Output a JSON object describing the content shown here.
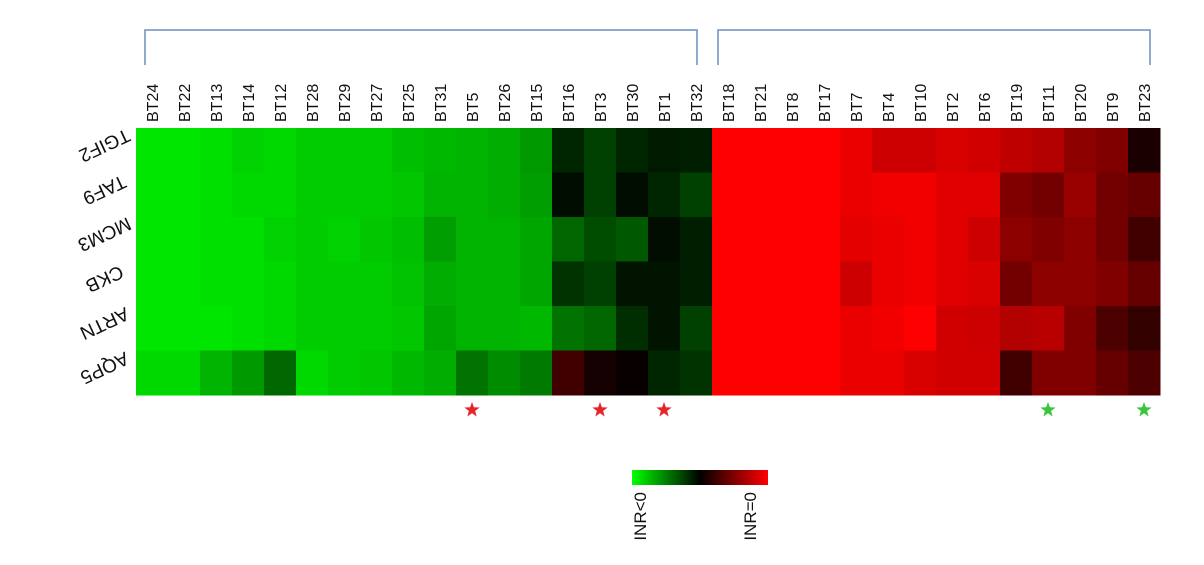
{
  "chart_data": {
    "type": "heatmap",
    "categories": [
      "BT24",
      "BT22",
      "BT13",
      "BT14",
      "BT12",
      "BT28",
      "BT29",
      "BT27",
      "BT25",
      "BT31",
      "BT5",
      "BT26",
      "BT15",
      "BT16",
      "BT3",
      "BT30",
      "BT1",
      "BT32",
      "BT18",
      "BT21",
      "BT8",
      "BT17",
      "BT7",
      "BT4",
      "BT10",
      "BT2",
      "BT6",
      "BT19",
      "BT11",
      "BT20",
      "BT9",
      "BT23"
    ],
    "rows": [
      "TGIF2",
      "TAF9",
      "MCM3",
      "CKB",
      "ARTN",
      "AQP5"
    ],
    "values": [
      [
        -0.9,
        -0.9,
        -0.88,
        -0.82,
        -0.85,
        -0.8,
        -0.8,
        -0.8,
        -0.75,
        -0.72,
        -0.7,
        -0.68,
        -0.6,
        -0.15,
        -0.25,
        -0.15,
        -0.1,
        -0.12,
        1,
        1,
        1,
        1,
        0.92,
        0.8,
        0.8,
        0.85,
        0.82,
        0.75,
        0.7,
        0.55,
        0.5,
        0.1
      ],
      [
        -0.9,
        -0.9,
        -0.88,
        -0.85,
        -0.85,
        -0.8,
        -0.8,
        -0.8,
        -0.78,
        -0.7,
        -0.7,
        -0.68,
        -0.62,
        -0.05,
        -0.25,
        -0.05,
        -0.15,
        -0.25,
        1,
        1,
        1,
        1,
        0.92,
        0.95,
        0.95,
        0.88,
        0.88,
        0.5,
        0.45,
        0.6,
        0.45,
        0.4
      ],
      [
        -0.9,
        -0.9,
        -0.88,
        -0.88,
        -0.82,
        -0.8,
        -0.82,
        -0.78,
        -0.75,
        -0.62,
        -0.7,
        -0.7,
        -0.65,
        -0.4,
        -0.3,
        -0.35,
        -0.05,
        -0.12,
        1,
        1,
        1,
        1,
        0.9,
        0.92,
        0.95,
        0.88,
        0.8,
        0.55,
        0.5,
        0.55,
        0.45,
        0.25
      ],
      [
        -0.9,
        -0.9,
        -0.88,
        -0.88,
        -0.85,
        -0.8,
        -0.8,
        -0.8,
        -0.76,
        -0.68,
        -0.7,
        -0.7,
        -0.65,
        -0.2,
        -0.25,
        -0.08,
        -0.08,
        -0.12,
        1,
        1,
        1,
        1,
        0.8,
        0.92,
        0.95,
        0.88,
        0.85,
        0.45,
        0.55,
        0.55,
        0.5,
        0.4
      ],
      [
        -0.9,
        -0.9,
        -0.9,
        -0.88,
        -0.85,
        -0.8,
        -0.8,
        -0.8,
        -0.78,
        -0.65,
        -0.7,
        -0.7,
        -0.72,
        -0.45,
        -0.4,
        -0.18,
        -0.08,
        -0.25,
        1,
        1,
        1,
        1,
        0.92,
        0.95,
        1,
        0.82,
        0.8,
        0.7,
        0.72,
        0.5,
        0.3,
        0.2
      ],
      [
        -0.85,
        -0.85,
        -0.7,
        -0.6,
        -0.4,
        -0.85,
        -0.8,
        -0.78,
        -0.72,
        -0.68,
        -0.45,
        -0.55,
        -0.48,
        0.25,
        0.08,
        0.03,
        -0.15,
        -0.2,
        1,
        1,
        1,
        1,
        0.92,
        0.92,
        0.85,
        0.82,
        0.82,
        0.25,
        0.5,
        0.5,
        0.4,
        0.3
      ]
    ],
    "zlim": [
      -1,
      1
    ],
    "colormap": [
      "#00ff00",
      "#000000",
      "#ff0000"
    ],
    "colorbar_labels": [
      "INR<0",
      "INR=0"
    ],
    "stars": [
      {
        "category": "BT5",
        "color": "#e8262a"
      },
      {
        "category": "BT3",
        "color": "#e8262a"
      },
      {
        "category": "BT1",
        "color": "#e8262a"
      },
      {
        "category": "BT11",
        "color": "#3cc43c"
      },
      {
        "category": "BT23",
        "color": "#3cc43c"
      }
    ]
  }
}
